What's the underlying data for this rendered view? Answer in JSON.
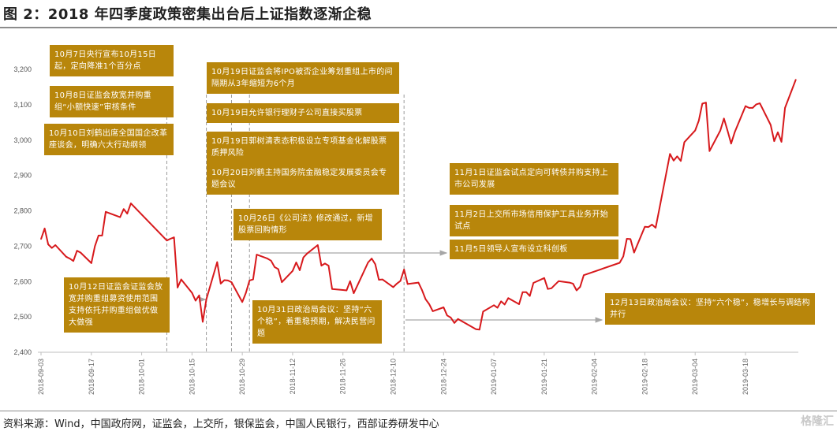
{
  "title": "图 2：2018 年四季度政策密集出台后上证指数逐渐企稳",
  "source": "资料来源：Wind，中国政府网，证监会，上交所，银保监会，中国人民银行，西部证券研发中心",
  "watermark": "格隆汇",
  "colors": {
    "line": "#d7191c",
    "annotation": "#b8860b",
    "dashed": "#9a9a9a",
    "arrow": "#a6a6a6",
    "axis": "#bfbfbf"
  },
  "annotations": [
    {
      "id": "a1",
      "text": "10月7日央行宣布10月15日起，定向降准1个百分点"
    },
    {
      "id": "a2",
      "text": "10月8日证监会放宽并购重组“小额快速”审核条件"
    },
    {
      "id": "a3",
      "text": "10月10日刘鹤出席全国国企改革座谈会，明确六大行动纲领"
    },
    {
      "id": "a4",
      "text": "10月12日证监会证监会放宽并购重组募资使用范围支持依托并购重组做优做大做强"
    },
    {
      "id": "a5",
      "text": "10月19日证监会将IPO被否企业筹划重组上市的间隔期从3年缩短为6个月"
    },
    {
      "id": "a6",
      "text": "10月19日允许银行理财子公司直接买股票"
    },
    {
      "id": "a7",
      "text": "10月19日郭树清表态积极设立专项基金化解股票质押风险"
    },
    {
      "id": "a8",
      "text": "10月20日刘鹤主持国务院金融稳定发展委员会专题会议"
    },
    {
      "id": "a9",
      "text": "10月26日《公司法》修改通过，新增股票回购情形"
    },
    {
      "id": "a10",
      "text": "10月31日政治局会议：坚持“六个稳”，着重稳预期，解决民营问题"
    },
    {
      "id": "a11",
      "text": "11月1日证监会试点定向可转债并购支持上市公司发展"
    },
    {
      "id": "a12",
      "text": "11月2日上交所市场信用保护工具业务开始试点"
    },
    {
      "id": "a13",
      "text": "11月5日领导人宣布设立科创板"
    },
    {
      "id": "a14",
      "text": "12月13日政治局会议：坚持“六个稳”，稳增长与调结构并行"
    }
  ],
  "chart_data": {
    "type": "line",
    "title": "",
    "xlabel": "",
    "ylabel": "",
    "ylim": [
      2400,
      3200
    ],
    "yticks": [
      2400,
      2500,
      2600,
      2700,
      2800,
      2900,
      3000,
      3100,
      3200
    ],
    "ytick_labels": [
      "2,400",
      "2,500",
      "2,600",
      "2,700",
      "2,800",
      "2,900",
      "3,000",
      "3,100",
      "3,200"
    ],
    "xticks": [
      "2018-09-03",
      "2018-09-17",
      "2018-10-01",
      "2018-10-15",
      "2018-10-29",
      "2018-11-12",
      "2018-11-26",
      "2018-12-10",
      "2018-12-24",
      "2019-01-07",
      "2019-01-21",
      "2019-02-04",
      "2019-02-18",
      "2019-03-04",
      "2019-03-18"
    ],
    "grid": false,
    "event_dates": [
      "2018-10-08",
      "2018-10-19",
      "2018-10-26",
      "2018-10-31",
      "2018-12-13"
    ],
    "series": [
      {
        "values": [
          [
            "2018-09-03",
            2720
          ],
          [
            "2018-09-04",
            2750
          ],
          [
            "2018-09-05",
            2705
          ],
          [
            "2018-09-06",
            2695
          ],
          [
            "2018-09-07",
            2703
          ],
          [
            "2018-09-10",
            2670
          ],
          [
            "2018-09-11",
            2665
          ],
          [
            "2018-09-12",
            2658
          ],
          [
            "2018-09-13",
            2687
          ],
          [
            "2018-09-14",
            2682
          ],
          [
            "2018-09-17",
            2652
          ],
          [
            "2018-09-18",
            2700
          ],
          [
            "2018-09-19",
            2730
          ],
          [
            "2018-09-20",
            2730
          ],
          [
            "2018-09-21",
            2797
          ],
          [
            "2018-09-25",
            2782
          ],
          [
            "2018-09-26",
            2805
          ],
          [
            "2018-09-27",
            2792
          ],
          [
            "2018-09-28",
            2821
          ],
          [
            "2018-10-08",
            2716
          ],
          [
            "2018-10-09",
            2721
          ],
          [
            "2018-10-10",
            2725
          ],
          [
            "2018-10-11",
            2583
          ],
          [
            "2018-10-12",
            2606
          ],
          [
            "2018-10-15",
            2568
          ],
          [
            "2018-10-16",
            2546
          ],
          [
            "2018-10-17",
            2561
          ],
          [
            "2018-10-18",
            2486
          ],
          [
            "2018-10-19",
            2550
          ],
          [
            "2018-10-22",
            2655
          ],
          [
            "2018-10-23",
            2594
          ],
          [
            "2018-10-24",
            2604
          ],
          [
            "2018-10-25",
            2603
          ],
          [
            "2018-10-26",
            2598
          ],
          [
            "2018-10-29",
            2542
          ],
          [
            "2018-10-30",
            2568
          ],
          [
            "2018-10-31",
            2603
          ],
          [
            "2018-11-01",
            2606
          ],
          [
            "2018-11-02",
            2676
          ],
          [
            "2018-11-05",
            2665
          ],
          [
            "2018-11-06",
            2659
          ],
          [
            "2018-11-07",
            2641
          ],
          [
            "2018-11-08",
            2635
          ],
          [
            "2018-11-09",
            2598
          ],
          [
            "2018-11-12",
            2630
          ],
          [
            "2018-11-13",
            2654
          ],
          [
            "2018-11-14",
            2632
          ],
          [
            "2018-11-15",
            2668
          ],
          [
            "2018-11-16",
            2679
          ],
          [
            "2018-11-19",
            2703
          ],
          [
            "2018-11-20",
            2645
          ],
          [
            "2018-11-21",
            2651
          ],
          [
            "2018-11-22",
            2645
          ],
          [
            "2018-11-23",
            2579
          ],
          [
            "2018-11-26",
            2576
          ],
          [
            "2018-11-27",
            2575
          ],
          [
            "2018-11-28",
            2601
          ],
          [
            "2018-11-29",
            2567
          ],
          [
            "2018-11-30",
            2588
          ],
          [
            "2018-12-03",
            2654
          ],
          [
            "2018-12-04",
            2665
          ],
          [
            "2018-12-05",
            2649
          ],
          [
            "2018-12-06",
            2605
          ],
          [
            "2018-12-07",
            2606
          ],
          [
            "2018-12-10",
            2584
          ],
          [
            "2018-12-11",
            2594
          ],
          [
            "2018-12-12",
            2602
          ],
          [
            "2018-12-13",
            2634
          ],
          [
            "2018-12-14",
            2593
          ],
          [
            "2018-12-17",
            2597
          ],
          [
            "2018-12-18",
            2576
          ],
          [
            "2018-12-19",
            2550
          ],
          [
            "2018-12-20",
            2536
          ],
          [
            "2018-12-21",
            2516
          ],
          [
            "2018-12-24",
            2527
          ],
          [
            "2018-12-25",
            2504
          ],
          [
            "2018-12-26",
            2498
          ],
          [
            "2018-12-27",
            2483
          ],
          [
            "2018-12-28",
            2494
          ],
          [
            "2019-01-02",
            2465
          ],
          [
            "2019-01-03",
            2464
          ],
          [
            "2019-01-04",
            2515
          ],
          [
            "2019-01-07",
            2533
          ],
          [
            "2019-01-08",
            2526
          ],
          [
            "2019-01-09",
            2544
          ],
          [
            "2019-01-10",
            2535
          ],
          [
            "2019-01-11",
            2553
          ],
          [
            "2019-01-14",
            2536
          ],
          [
            "2019-01-15",
            2570
          ],
          [
            "2019-01-16",
            2570
          ],
          [
            "2019-01-17",
            2559
          ],
          [
            "2019-01-18",
            2596
          ],
          [
            "2019-01-21",
            2610
          ],
          [
            "2019-01-22",
            2579
          ],
          [
            "2019-01-23",
            2581
          ],
          [
            "2019-01-24",
            2591
          ],
          [
            "2019-01-25",
            2601
          ],
          [
            "2019-01-28",
            2597
          ],
          [
            "2019-01-29",
            2594
          ],
          [
            "2019-01-30",
            2575
          ],
          [
            "2019-01-31",
            2585
          ],
          [
            "2019-02-01",
            2618
          ],
          [
            "2019-02-11",
            2653
          ],
          [
            "2019-02-12",
            2671
          ],
          [
            "2019-02-13",
            2721
          ],
          [
            "2019-02-14",
            2720
          ],
          [
            "2019-02-15",
            2682
          ],
          [
            "2019-02-18",
            2755
          ],
          [
            "2019-02-19",
            2754
          ],
          [
            "2019-02-20",
            2761
          ],
          [
            "2019-02-21",
            2752
          ],
          [
            "2019-02-22",
            2804
          ],
          [
            "2019-02-25",
            2961
          ],
          [
            "2019-02-26",
            2942
          ],
          [
            "2019-02-27",
            2954
          ],
          [
            "2019-02-28",
            2941
          ],
          [
            "2019-03-01",
            2994
          ],
          [
            "2019-03-04",
            3027
          ],
          [
            "2019-03-05",
            3055
          ],
          [
            "2019-03-06",
            3103
          ],
          [
            "2019-03-07",
            3106
          ],
          [
            "2019-03-08",
            2969
          ],
          [
            "2019-03-11",
            3027
          ],
          [
            "2019-03-12",
            3061
          ],
          [
            "2019-03-13",
            3027
          ],
          [
            "2019-03-14",
            2990
          ],
          [
            "2019-03-15",
            3022
          ],
          [
            "2019-03-18",
            3096
          ],
          [
            "2019-03-19",
            3091
          ],
          [
            "2019-03-20",
            3091
          ],
          [
            "2019-03-21",
            3101
          ],
          [
            "2019-03-22",
            3104
          ],
          [
            "2019-03-25",
            3043
          ],
          [
            "2019-03-26",
            2997
          ],
          [
            "2019-03-27",
            3022
          ],
          [
            "2019-03-28",
            2995
          ],
          [
            "2019-03-29",
            3091
          ],
          [
            "2019-04-01",
            3171
          ]
        ]
      }
    ]
  }
}
